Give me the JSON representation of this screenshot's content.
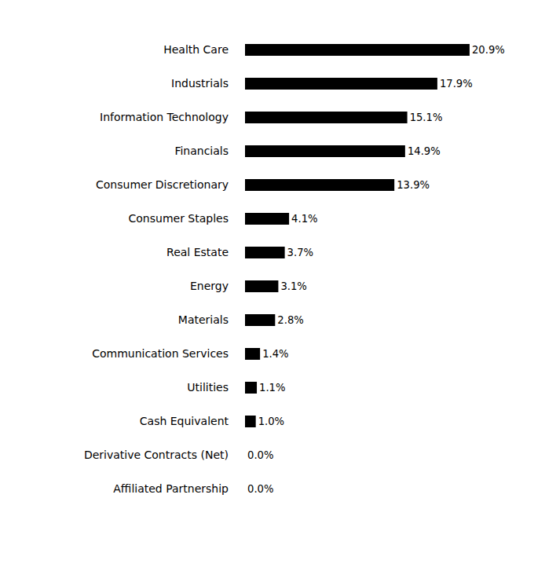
{
  "chart_data": {
    "type": "bar",
    "orientation": "horizontal",
    "categories": [
      "Health Care",
      "Industrials",
      "Information Technology",
      "Financials",
      "Consumer Discretionary",
      "Consumer Staples",
      "Real Estate",
      "Energy",
      "Materials",
      "Communication Services",
      "Utilities",
      "Cash Equivalent",
      "Derivative Contracts (Net)",
      "Affiliated Partnership"
    ],
    "values": [
      20.9,
      17.9,
      15.1,
      14.9,
      13.9,
      4.1,
      3.7,
      3.1,
      2.8,
      1.4,
      1.1,
      1.0,
      0.0,
      0.0
    ],
    "value_labels": [
      "20.9%",
      "17.9%",
      "15.1%",
      "14.9%",
      "13.9%",
      "4.1%",
      "3.7%",
      "3.1%",
      "2.8%",
      "1.4%",
      "1.1%",
      "1.0%",
      "0.0%",
      "0.0%"
    ],
    "color": "#000000",
    "data_labels": true,
    "tick_labels": "y",
    "grid": false
  }
}
